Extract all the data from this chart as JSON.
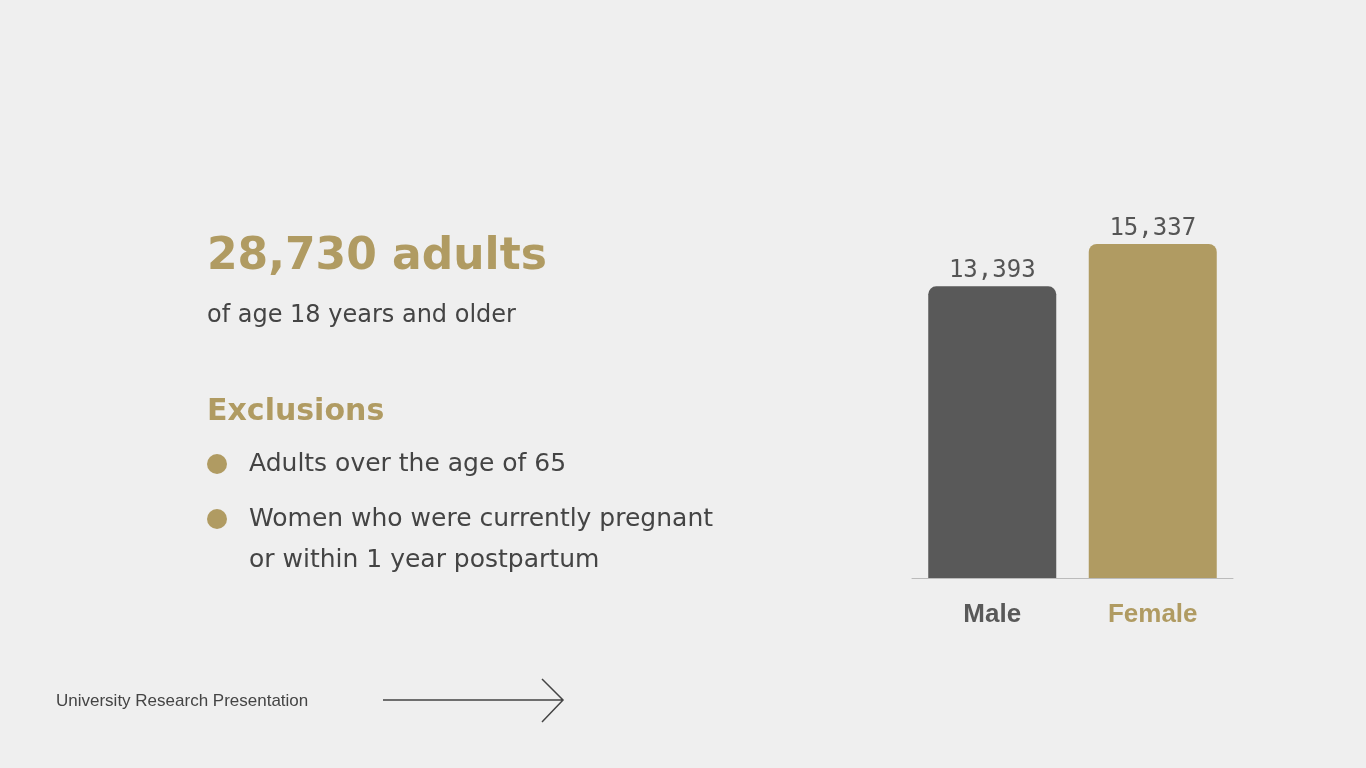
{
  "chart_data": {
    "type": "bar",
    "title": "28,730 adults",
    "subtitle": "of age 18 years and older",
    "annotations": [
      "Exclusions",
      "Adults over the age of 65",
      "Women who were currently pregnant or within 1 year postpartum",
      "University Research Presentation"
    ],
    "categories": [
      "Male",
      "Female"
    ],
    "values": [
      13393,
      15337
    ],
    "colors": [
      "#595959",
      "#b09b62"
    ],
    "value_labels": [
      "13,393",
      "15,337"
    ],
    "tick_labels": "x"
  }
}
